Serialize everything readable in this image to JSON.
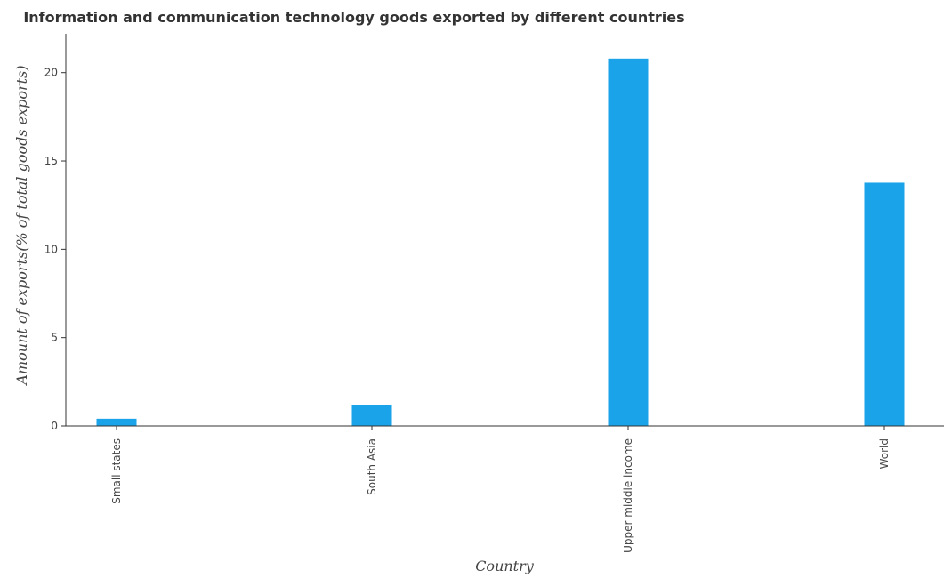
{
  "chart_data": {
    "type": "bar",
    "title": "Information and communication technology goods exported by different countries",
    "xlabel": "Country",
    "ylabel": "Amount of exports(% of total goods exports)",
    "categories": [
      "Small states",
      "South Asia",
      "Upper middle income",
      "World"
    ],
    "values": [
      0.41,
      1.19,
      20.8,
      13.77
    ],
    "ylim": [
      0,
      22.2
    ],
    "yticks": [
      0,
      5,
      10,
      15,
      20
    ],
    "ytick_labels": [
      "0",
      "5",
      "10",
      "15",
      "20"
    ],
    "bar_color": "#1aa3e8",
    "grid": false
  }
}
